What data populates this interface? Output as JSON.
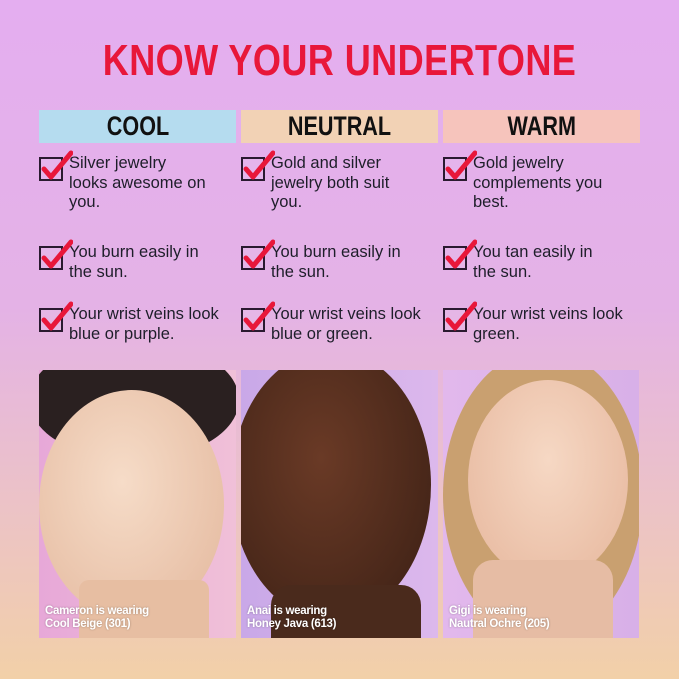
{
  "title": "KNOW YOUR UNDERTONE",
  "colors": {
    "title": "#e8173a",
    "cool": "#b5dcef",
    "neutral": "#f2d2b5",
    "warm": "#f6c4bc",
    "check": "#e8173a"
  },
  "columns": [
    {
      "label": "COOL",
      "items": [
        "Silver jewelry looks awesome on you.",
        "You burn easily in the sun.",
        "Your wrist veins look blue or purple."
      ],
      "caption": [
        "Cameron is wearing",
        "Cool Beige (301)"
      ]
    },
    {
      "label": "NEUTRAL",
      "items": [
        "Gold and silver jewelry both suit you.",
        "You burn easily in the sun.",
        "Your wrist veins look blue or green."
      ],
      "caption": [
        "Anai is wearing",
        "Honey Java (613)"
      ]
    },
    {
      "label": "WARM",
      "items": [
        "Gold jewelry complements you best.",
        "You tan easily in the sun.",
        "Your wrist veins look green."
      ],
      "caption": [
        "Gigi is wearing",
        "Nautral Ochre (205)"
      ]
    }
  ]
}
